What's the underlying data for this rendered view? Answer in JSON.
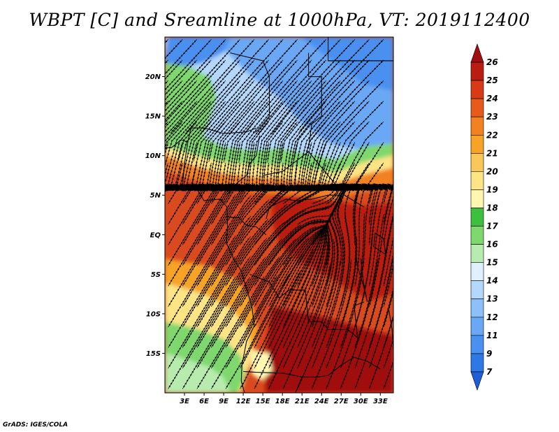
{
  "title": "WBPT [C] and Sreamline at 1000hPa, VT: 2019112400",
  "credit": "GrADS: IGES/COLA",
  "map": {
    "lon_range": [
      0,
      35
    ],
    "lat_range": [
      -20,
      25
    ],
    "lat_ticks": [
      "20N",
      "15N",
      "10N",
      "5N",
      "EQ",
      "5S",
      "10S",
      "15S"
    ],
    "lon_ticks": [
      "3E",
      "6E",
      "9E",
      "12E",
      "15E",
      "18E",
      "21E",
      "24E",
      "27E",
      "30E",
      "33E"
    ]
  },
  "colorbar": {
    "levels": [
      "7",
      "9",
      "11",
      "12",
      "13",
      "14",
      "15",
      "16",
      "17",
      "18",
      "19",
      "20",
      "21",
      "22",
      "23",
      "24",
      "25",
      "26"
    ],
    "colors": [
      "#1f5fd6",
      "#2e78e6",
      "#4a90f0",
      "#6aa8f5",
      "#8cc0fa",
      "#b4d8fc",
      "#dff0ff",
      "#b7ecae",
      "#7ed86d",
      "#3fbf3f",
      "#fff7b0",
      "#fde485",
      "#fac75a",
      "#f6a327",
      "#f18121",
      "#e85a1b",
      "#d63a16",
      "#bb1c11",
      "#a01010"
    ]
  }
}
